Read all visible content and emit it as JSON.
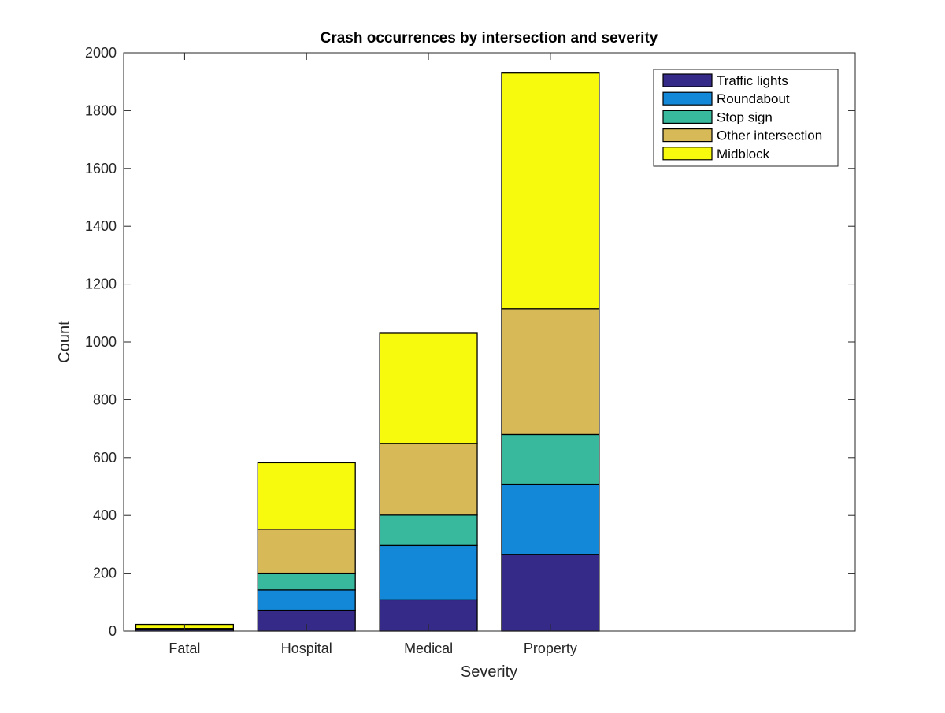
{
  "chart_data": {
    "type": "bar",
    "stacked": true,
    "title": "Crash occurrences by intersection and severity",
    "xlabel": "Severity",
    "ylabel": "Count",
    "categories": [
      "Fatal",
      "Hospital",
      "Medical",
      "Property"
    ],
    "xlim": [
      0.5,
      6.5
    ],
    "ylim": [
      0,
      2000
    ],
    "yticks": [
      0,
      200,
      400,
      600,
      800,
      1000,
      1200,
      1400,
      1600,
      1800,
      2000
    ],
    "grid": false,
    "legend_position": "top-right",
    "series": [
      {
        "name": "Traffic lights",
        "color": "#352A87",
        "values": [
          5,
          72,
          108,
          265
        ]
      },
      {
        "name": "Roundabout",
        "color": "#1488D8",
        "values": [
          1,
          70,
          188,
          243
        ]
      },
      {
        "name": "Stop sign",
        "color": "#38B99E",
        "values": [
          1,
          58,
          105,
          172
        ]
      },
      {
        "name": "Other intersection",
        "color": "#D7B957",
        "values": [
          2,
          152,
          248,
          435
        ]
      },
      {
        "name": "Midblock",
        "color": "#F8FA0D",
        "values": [
          14,
          230,
          381,
          815
        ]
      }
    ]
  }
}
